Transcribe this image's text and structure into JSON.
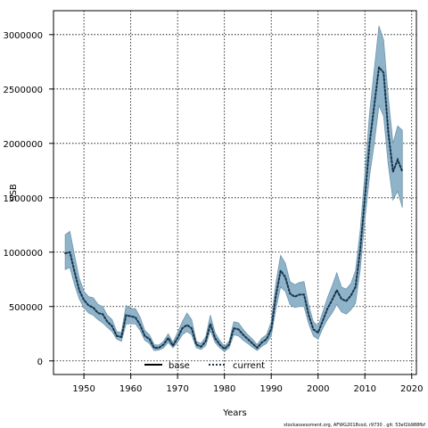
{
  "chart_data": {
    "type": "line",
    "xlabel": "Years",
    "ylabel": "SSB",
    "xlim": [
      1943.5,
      2021
    ],
    "ylim": [
      -125000,
      3220000
    ],
    "x_ticks": [
      1950,
      1960,
      1970,
      1980,
      1990,
      2000,
      2010,
      2020
    ],
    "y_ticks": [
      0,
      500000,
      1000000,
      1500000,
      2000000,
      2500000,
      3000000
    ],
    "grid": true,
    "legend": {
      "placement": "bottom-center",
      "entries": [
        "base",
        "current"
      ]
    },
    "colors": {
      "band": "#8fb3c9",
      "band_edge": "#6f96ad",
      "current": "#16334a",
      "base": "#000000"
    },
    "x": [
      1946,
      1947,
      1948,
      1949,
      1950,
      1951,
      1952,
      1953,
      1954,
      1955,
      1956,
      1957,
      1958,
      1959,
      1960,
      1961,
      1962,
      1963,
      1964,
      1965,
      1966,
      1967,
      1968,
      1969,
      1970,
      1971,
      1972,
      1973,
      1974,
      1975,
      1976,
      1977,
      1978,
      1979,
      1980,
      1981,
      1982,
      1983,
      1984,
      1985,
      1986,
      1987,
      1988,
      1989,
      1990,
      1991,
      1992,
      1993,
      1994,
      1995,
      1996,
      1997,
      1998,
      1999,
      2000,
      2001,
      2002,
      2003,
      2004,
      2005,
      2006,
      2007,
      2008,
      2009,
      2010,
      2011,
      2012,
      2013,
      2014,
      2015,
      2016,
      2017,
      2018
    ],
    "series": [
      {
        "name": "current",
        "values": [
          990000,
          1000000,
          820000,
          650000,
          560000,
          510000,
          490000,
          440000,
          430000,
          360000,
          320000,
          230000,
          220000,
          420000,
          410000,
          400000,
          330000,
          230000,
          200000,
          120000,
          120000,
          150000,
          210000,
          140000,
          210000,
          300000,
          330000,
          300000,
          150000,
          130000,
          180000,
          340000,
          210000,
          150000,
          110000,
          150000,
          300000,
          290000,
          240000,
          200000,
          160000,
          120000,
          170000,
          200000,
          290000,
          600000,
          830000,
          770000,
          620000,
          590000,
          610000,
          610000,
          420000,
          290000,
          260000,
          370000,
          480000,
          560000,
          650000,
          570000,
          550000,
          600000,
          680000,
          1020000,
          1500000,
          2000000,
          2350000,
          2700000,
          2650000,
          2100000,
          1740000,
          1850000,
          1740000
        ],
        "lower": [
          840000,
          860000,
          700000,
          570000,
          490000,
          440000,
          420000,
          380000,
          350000,
          310000,
          270000,
          200000,
          180000,
          340000,
          340000,
          340000,
          280000,
          190000,
          160000,
          95000,
          100000,
          120000,
          170000,
          120000,
          170000,
          240000,
          270000,
          240000,
          120000,
          105000,
          140000,
          280000,
          170000,
          120000,
          85000,
          120000,
          240000,
          230000,
          190000,
          160000,
          125000,
          95000,
          135000,
          160000,
          230000,
          480000,
          680000,
          640000,
          520000,
          490000,
          500000,
          500000,
          340000,
          230000,
          200000,
          300000,
          380000,
          440000,
          520000,
          450000,
          430000,
          470000,
          530000,
          840000,
          1300000,
          1700000,
          2000000,
          2350000,
          2250000,
          1800000,
          1480000,
          1560000,
          1410000
        ],
        "upper": [
          1160000,
          1190000,
          970000,
          760000,
          640000,
          590000,
          580000,
          520000,
          500000,
          420000,
          380000,
          270000,
          260000,
          510000,
          480000,
          480000,
          400000,
          280000,
          240000,
          150000,
          145000,
          180000,
          250000,
          170000,
          260000,
          360000,
          440000,
          380000,
          180000,
          160000,
          220000,
          420000,
          260000,
          190000,
          135000,
          180000,
          360000,
          350000,
          290000,
          240000,
          200000,
          150000,
          210000,
          240000,
          360000,
          720000,
          970000,
          900000,
          730000,
          700000,
          720000,
          730000,
          510000,
          360000,
          320000,
          450000,
          580000,
          690000,
          810000,
          680000,
          660000,
          710000,
          830000,
          1200000,
          1720000,
          2280000,
          2680000,
          3080000,
          2950000,
          2420000,
          2000000,
          2160000,
          2120000
        ]
      },
      {
        "name": "base"
      }
    ]
  },
  "footer": "stockassessment.org, AFWG2018cod, r9730 ,  git: 53ef2b988fbf"
}
